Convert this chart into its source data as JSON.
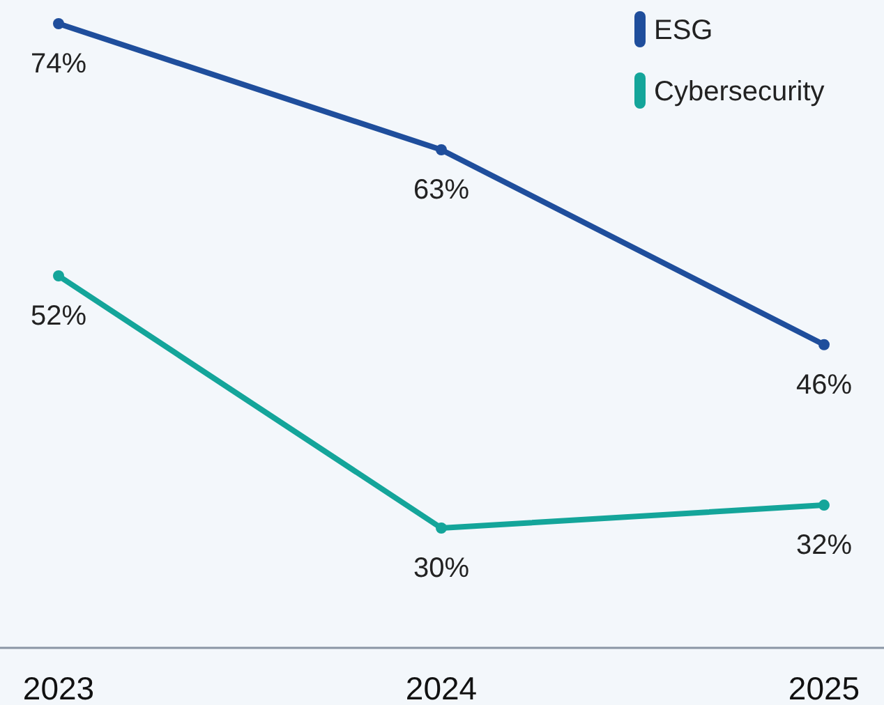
{
  "chart_data": {
    "type": "line",
    "categories": [
      "2023",
      "2024",
      "2025"
    ],
    "series": [
      {
        "name": "ESG",
        "color": "#1f4e9c",
        "values": [
          74,
          63,
          46
        ],
        "value_labels": [
          "74%",
          "63%",
          "46%"
        ]
      },
      {
        "name": "Cybersecurity",
        "color": "#14a59a",
        "values": [
          52,
          30,
          32
        ],
        "value_labels": [
          "52%",
          "30%",
          "32%"
        ]
      }
    ],
    "marker": "circle",
    "legend": "top right"
  }
}
